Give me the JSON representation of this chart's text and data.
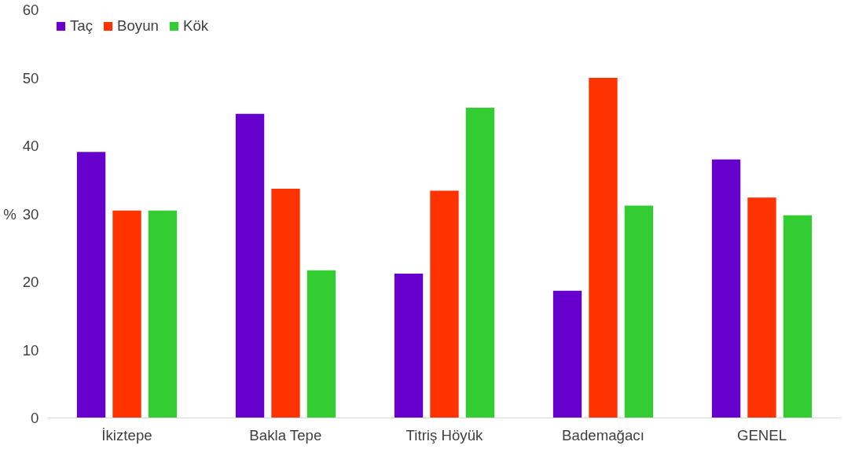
{
  "chart_data": {
    "type": "bar",
    "ylabel": "%",
    "categories": [
      "İkiztepe",
      "Bakla Tepe",
      "Titriş Höyük",
      "Bademağacı",
      "GENEL"
    ],
    "series": [
      {
        "name": "Taç",
        "color": "#6600cc",
        "values": [
          39.1,
          44.7,
          21.2,
          18.7,
          38.0
        ]
      },
      {
        "name": "Boyun",
        "color": "#ff3300",
        "values": [
          30.5,
          33.7,
          33.4,
          50.0,
          32.4
        ]
      },
      {
        "name": "Kök",
        "color": "#33cc33",
        "values": [
          30.5,
          21.7,
          45.6,
          31.2,
          29.8
        ]
      }
    ],
    "ylim": [
      0,
      60
    ],
    "yticks": [
      0,
      10,
      20,
      30,
      40,
      50,
      60
    ],
    "grid": false,
    "legend": "top left"
  }
}
